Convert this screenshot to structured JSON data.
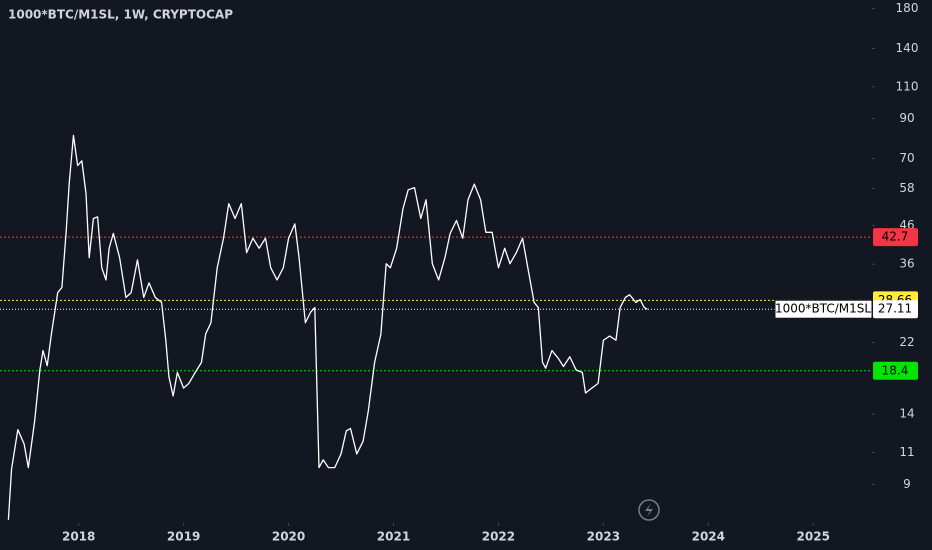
{
  "chart_data": {
    "type": "line",
    "title": "1000*BTC/M1SL, 1W, CRYPTOCAP",
    "log_scale": true,
    "grid": false,
    "xlim": [
      2017.25,
      2025.56
    ],
    "xticks": [
      2018,
      2019,
      2020,
      2021,
      2022,
      2023,
      2024,
      2025
    ],
    "ylim": [
      7.1,
      190
    ],
    "yticks": [
      9,
      11,
      14,
      22,
      36,
      46,
      58,
      70,
      90,
      110,
      140,
      180
    ],
    "series": [
      {
        "name": "1000*BTC/M1SL",
        "color": "#ffffff",
        "x": [
          2017.33,
          2017.36,
          2017.42,
          2017.48,
          2017.52,
          2017.58,
          2017.63,
          2017.66,
          2017.7,
          2017.74,
          2017.8,
          2017.84,
          2017.88,
          2017.91,
          2017.95,
          2017.99,
          2018.03,
          2018.07,
          2018.1,
          2018.14,
          2018.18,
          2018.22,
          2018.26,
          2018.29,
          2018.33,
          2018.39,
          2018.45,
          2018.5,
          2018.56,
          2018.62,
          2018.67,
          2018.73,
          2018.79,
          2018.83,
          2018.86,
          2018.9,
          2018.94,
          2019.0,
          2019.05,
          2019.11,
          2019.17,
          2019.21,
          2019.26,
          2019.32,
          2019.38,
          2019.43,
          2019.49,
          2019.55,
          2019.6,
          2019.66,
          2019.72,
          2019.78,
          2019.83,
          2019.89,
          2019.95,
          2020.0,
          2020.06,
          2020.1,
          2020.16,
          2020.21,
          2020.25,
          2020.29,
          2020.33,
          2020.38,
          2020.44,
          2020.5,
          2020.55,
          2020.59,
          2020.65,
          2020.71,
          2020.76,
          2020.82,
          2020.88,
          2020.93,
          2020.97,
          2021.03,
          2021.09,
          2021.14,
          2021.2,
          2021.26,
          2021.31,
          2021.37,
          2021.43,
          2021.49,
          2021.54,
          2021.6,
          2021.66,
          2021.71,
          2021.77,
          2021.83,
          2021.88,
          2021.94,
          2022.0,
          2022.06,
          2022.11,
          2022.17,
          2022.23,
          2022.28,
          2022.34,
          2022.38,
          2022.42,
          2022.45,
          2022.51,
          2022.57,
          2022.62,
          2022.68,
          2022.74,
          2022.8,
          2022.83,
          2022.89,
          2022.95,
          2023.0,
          2023.06,
          2023.12,
          2023.16,
          2023.21,
          2023.25,
          2023.31,
          2023.35,
          2023.39,
          2023.42
        ],
        "values": [
          7.2,
          9.9,
          12.7,
          11.6,
          10.0,
          13.4,
          18.5,
          20.9,
          19.0,
          23.2,
          30.1,
          31.1,
          44.0,
          60.1,
          81,
          67,
          69,
          56,
          37.5,
          48,
          48.5,
          35.2,
          32.6,
          39.8,
          43.7,
          37.5,
          29.2,
          30.1,
          37,
          29.2,
          32,
          29.2,
          28.3,
          22.3,
          17.7,
          15.7,
          18.2,
          16.5,
          17.0,
          18.2,
          19.4,
          23.2,
          24.9,
          35.2,
          42.4,
          52.7,
          48,
          52.7,
          38.7,
          42.4,
          39.8,
          42.4,
          35.2,
          32.6,
          35.2,
          42.4,
          46.4,
          37.5,
          24.9,
          26.6,
          27.4,
          10.0,
          10.5,
          10.0,
          10.0,
          10.9,
          12.6,
          12.8,
          10.9,
          11.8,
          14.3,
          19.4,
          23.2,
          36.1,
          35.2,
          39.8,
          51,
          57.5,
          58.3,
          48,
          54,
          36.1,
          32.6,
          37.5,
          43.7,
          47.4,
          42.4,
          54,
          59.6,
          54,
          44,
          44,
          35.2,
          39.8,
          36.1,
          38.7,
          42.4,
          35.2,
          28.3,
          27.4,
          19.4,
          18.7,
          20.9,
          19.9,
          18.9,
          20.1,
          18.5,
          18.2,
          16.0,
          16.5,
          17.0,
          22.3,
          22.9,
          22.3,
          27.4,
          29.2,
          29.7,
          28.3,
          28.8,
          27.4,
          27.11
        ]
      }
    ],
    "horizontal_lines": [
      {
        "value": 42.7,
        "color": "#f23645"
      },
      {
        "value": 28.66,
        "color": "#ffeb3b"
      },
      {
        "value": 18.4,
        "color": "#00e600"
      }
    ]
  }
}
